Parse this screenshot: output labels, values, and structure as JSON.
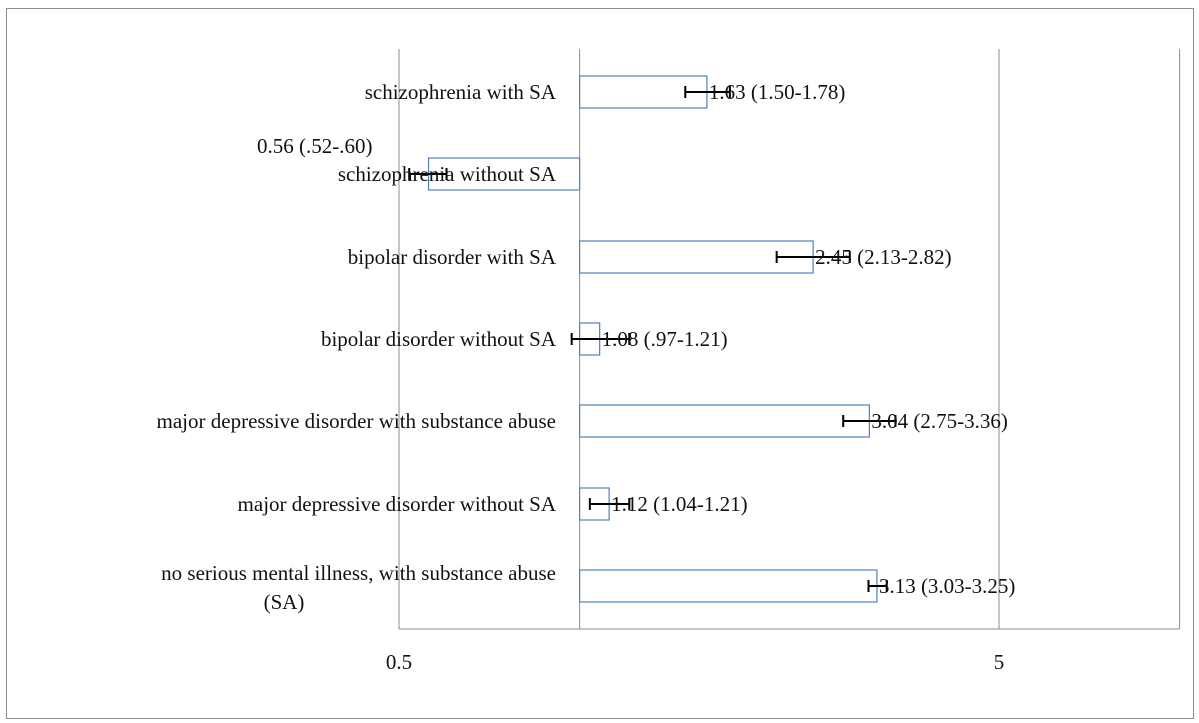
{
  "chart_data": {
    "type": "bar",
    "orientation": "horizontal",
    "x_scale": "log",
    "xlim": [
      0.5,
      10
    ],
    "baseline": 1,
    "xticks": [
      {
        "value": 0.5,
        "label": "0.5"
      },
      {
        "value": 5,
        "label": "5"
      }
    ],
    "categories": [
      {
        "label_lines": [
          "schizophrenia with SA"
        ],
        "value": 1.63,
        "ci_low": 1.5,
        "ci_high": 1.78,
        "label": "1.63 (1.50-1.78)"
      },
      {
        "label_lines": [
          "schizophrenia without SA"
        ],
        "value": 0.56,
        "ci_low": 0.52,
        "ci_high": 0.6,
        "label": "0.56 (.52-.60)"
      },
      {
        "label_lines": [
          "bipolar disorder with SA"
        ],
        "value": 2.45,
        "ci_low": 2.13,
        "ci_high": 2.82,
        "label": "2.45 (2.13-2.82)"
      },
      {
        "label_lines": [
          "bipolar disorder without SA"
        ],
        "value": 1.08,
        "ci_low": 0.97,
        "ci_high": 1.21,
        "label": "1.08 (.97-1.21)"
      },
      {
        "label_lines": [
          "major depressive disorder with substance abuse"
        ],
        "value": 3.04,
        "ci_low": 2.75,
        "ci_high": 3.36,
        "label": "3.04 (2.75-3.36)"
      },
      {
        "label_lines": [
          "major depressive disorder without SA"
        ],
        "value": 1.12,
        "ci_low": 1.04,
        "ci_high": 1.21,
        "label": "1.12 (1.04-1.21)"
      },
      {
        "label_lines": [
          "no serious mental illness, with substance abuse",
          "(SA)"
        ],
        "value": 3.13,
        "ci_low": 3.03,
        "ci_high": 3.25,
        "label": "3.13 (3.03-3.25)"
      }
    ],
    "grid": true,
    "colors": {
      "bar_border": "#4f81bd",
      "bar_fill": "#ffffff",
      "grid": "#8c8c8c",
      "error_bar": "#000000"
    }
  }
}
